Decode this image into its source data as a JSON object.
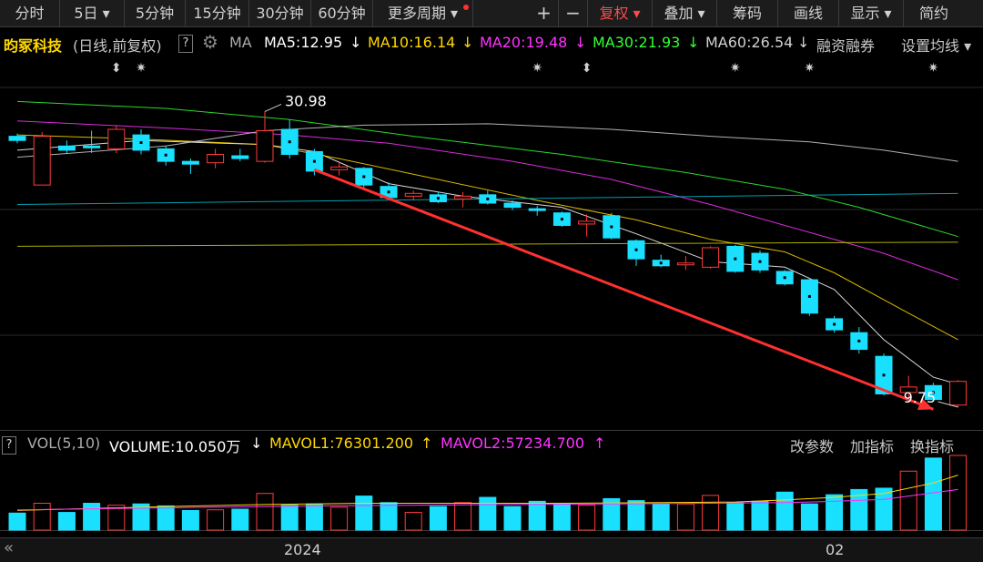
{
  "toolbar": {
    "items": [
      "分时",
      "5日 ▾",
      "5分钟",
      "15分钟",
      "30分钟",
      "60分钟",
      "更多周期 ▾",
      "+",
      "−",
      "复权 ▾",
      "叠加 ▾",
      "筹码",
      "画线",
      "显示 ▾",
      "简约"
    ]
  },
  "header": {
    "stock": "昀冢科技",
    "period": "(日线,前复权)",
    "help": "?",
    "ma_label": "MA",
    "ma5": "MA5:12.95",
    "ma10": "MA10:16.14",
    "ma20": "MA20:19.48",
    "ma30": "MA30:21.93",
    "ma60": "MA60:26.54",
    "margin": "融资融券",
    "settings": "设置均线 ▾",
    "arrow": "↓"
  },
  "volume_header": {
    "help": "?",
    "label": "VOL(5,10)",
    "volume": "VOLUME:10.050万",
    "mavol1": "MAVOL1:76301.200",
    "mavol2": "MAVOL2:57234.700",
    "btn_params": "改参数",
    "btn_add": "加指标",
    "btn_switch": "换指标",
    "down_arrow": "↓",
    "up_arrow": "↑"
  },
  "colors": {
    "up": "#ff3b3b",
    "down": "#19e0ff",
    "ma5": "#ffffff",
    "ma10": "#ffd700",
    "ma20": "#ff33ff",
    "ma30": "#33ff33",
    "ma60": "#d0d0d0",
    "trend": "#ff3030"
  },
  "chart_data": {
    "type": "candlestick",
    "price_range": [
      8.9,
      33.1
    ],
    "annotations": {
      "high": "30.98",
      "low": "9.75"
    },
    "x_axis_labels": [
      "2024",
      "02"
    ],
    "candles": [
      {
        "o": 29.2,
        "c": 28.9,
        "h": 29.4,
        "l": 28.7
      },
      {
        "o": 25.7,
        "c": 29.2,
        "h": 29.5,
        "l": 25.7
      },
      {
        "o": 28.5,
        "c": 28.2,
        "h": 28.9,
        "l": 28.0
      },
      {
        "o": 28.5,
        "c": 28.4,
        "h": 29.6,
        "l": 28.0
      },
      {
        "o": 28.3,
        "c": 29.7,
        "h": 30.0,
        "l": 28.0
      },
      {
        "o": 29.3,
        "c": 28.2,
        "h": 29.7,
        "l": 27.9
      },
      {
        "o": 28.3,
        "c": 27.4,
        "h": 28.5,
        "l": 27.1
      },
      {
        "o": 27.4,
        "c": 27.2,
        "h": 27.6,
        "l": 26.5
      },
      {
        "o": 27.3,
        "c": 27.9,
        "h": 28.3,
        "l": 26.9
      },
      {
        "o": 27.8,
        "c": 27.6,
        "h": 28.3,
        "l": 27.4
      },
      {
        "o": 27.4,
        "c": 29.6,
        "h": 30.98,
        "l": 27.3
      },
      {
        "o": 29.7,
        "c": 27.9,
        "h": 30.4,
        "l": 27.6
      },
      {
        "o": 28.1,
        "c": 26.7,
        "h": 28.3,
        "l": 26.4
      },
      {
        "o": 26.8,
        "c": 27.0,
        "h": 27.4,
        "l": 26.4
      },
      {
        "o": 26.9,
        "c": 25.7,
        "h": 27.0,
        "l": 25.5
      },
      {
        "o": 25.6,
        "c": 24.8,
        "h": 25.9,
        "l": 24.7
      },
      {
        "o": 24.9,
        "c": 25.1,
        "h": 25.3,
        "l": 24.6
      },
      {
        "o": 25.0,
        "c": 24.5,
        "h": 25.2,
        "l": 24.4
      },
      {
        "o": 24.7,
        "c": 24.9,
        "h": 25.2,
        "l": 24.1
      },
      {
        "o": 25.0,
        "c": 24.4,
        "h": 25.3,
        "l": 24.3
      },
      {
        "o": 24.4,
        "c": 24.1,
        "h": 24.6,
        "l": 23.9
      },
      {
        "o": 24.0,
        "c": 23.9,
        "h": 24.2,
        "l": 23.5
      },
      {
        "o": 23.7,
        "c": 22.8,
        "h": 23.8,
        "l": 22.7
      },
      {
        "o": 22.9,
        "c": 23.1,
        "h": 23.6,
        "l": 22.0
      },
      {
        "o": 23.5,
        "c": 21.9,
        "h": 23.7,
        "l": 21.8
      },
      {
        "o": 21.7,
        "c": 20.4,
        "h": 21.8,
        "l": 19.9
      },
      {
        "o": 20.3,
        "c": 19.9,
        "h": 20.7,
        "l": 19.8
      },
      {
        "o": 20.1,
        "c": 20.1,
        "h": 20.6,
        "l": 19.6
      },
      {
        "o": 19.8,
        "c": 21.2,
        "h": 21.3,
        "l": 19.7
      },
      {
        "o": 21.3,
        "c": 19.5,
        "h": 21.4,
        "l": 19.4
      },
      {
        "o": 20.8,
        "c": 19.6,
        "h": 21.0,
        "l": 19.4
      },
      {
        "o": 19.5,
        "c": 18.6,
        "h": 19.6,
        "l": 18.5
      },
      {
        "o": 18.9,
        "c": 16.5,
        "h": 19.0,
        "l": 16.3
      },
      {
        "o": 16.1,
        "c": 15.3,
        "h": 16.3,
        "l": 15.1
      },
      {
        "o": 15.1,
        "c": 13.9,
        "h": 15.5,
        "l": 13.6
      },
      {
        "o": 13.4,
        "c": 10.7,
        "h": 13.6,
        "l": 10.6
      },
      {
        "o": 10.8,
        "c": 11.2,
        "h": 12.0,
        "l": 10.4
      },
      {
        "o": 11.3,
        "c": 10.3,
        "h": 11.5,
        "l": 10.2
      },
      {
        "o": 9.9,
        "c": 11.6,
        "h": 11.7,
        "l": 9.75
      }
    ],
    "volumes": [
      26,
      41,
      27,
      41,
      38,
      40,
      37,
      30,
      31,
      32,
      56,
      38,
      40,
      35,
      52,
      42,
      27,
      36,
      42,
      50,
      36,
      44,
      41,
      38,
      48,
      45,
      40,
      40,
      53,
      42,
      44,
      58,
      40,
      54,
      62,
      64,
      90,
      110,
      114
    ],
    "ma_lines": {
      "ma5": [
        [
          0,
          28.2
        ],
        [
          5,
          28.9
        ],
        [
          10,
          28.6
        ],
        [
          12,
          28.1
        ],
        [
          15,
          25.8
        ],
        [
          18,
          24.9
        ],
        [
          22,
          24.1
        ],
        [
          25,
          22.2
        ],
        [
          28,
          20.2
        ],
        [
          31,
          19.8
        ],
        [
          33,
          18.2
        ],
        [
          35,
          14.6
        ],
        [
          37,
          11.9
        ],
        [
          38,
          11.4
        ]
      ],
      "ma10": [
        [
          0,
          29.3
        ],
        [
          5,
          29.0
        ],
        [
          10,
          28.6
        ],
        [
          13,
          27.6
        ],
        [
          17,
          26.1
        ],
        [
          21,
          24.6
        ],
        [
          25,
          23.2
        ],
        [
          28,
          21.8
        ],
        [
          31,
          20.9
        ],
        [
          33,
          19.4
        ],
        [
          36,
          16.5
        ],
        [
          38,
          14.6
        ]
      ],
      "ma20": [
        [
          0,
          30.3
        ],
        [
          6,
          29.8
        ],
        [
          11,
          29.3
        ],
        [
          15,
          28.7
        ],
        [
          20,
          27.4
        ],
        [
          24,
          26.1
        ],
        [
          28,
          24.3
        ],
        [
          32,
          22.3
        ],
        [
          35,
          20.8
        ],
        [
          38,
          18.9
        ]
      ],
      "ma30": [
        [
          0,
          31.7
        ],
        [
          6,
          31.2
        ],
        [
          11,
          30.4
        ],
        [
          16,
          29.2
        ],
        [
          22,
          27.9
        ],
        [
          27,
          26.6
        ],
        [
          31,
          25.4
        ],
        [
          34,
          24.1
        ],
        [
          38,
          22.0
        ]
      ],
      "ma60": [
        [
          0,
          27.7
        ],
        [
          6,
          28.5
        ],
        [
          10,
          29.6
        ],
        [
          14,
          30.0
        ],
        [
          19,
          30.1
        ],
        [
          24,
          29.7
        ],
        [
          28,
          29.2
        ],
        [
          32,
          28.8
        ],
        [
          35,
          28.2
        ],
        [
          38,
          27.4
        ]
      ]
    },
    "horizontal_lines": [
      {
        "start": [
          0,
          24.3
        ],
        "end": [
          38,
          25.1
        ]
      },
      {
        "start": [
          0,
          21.3
        ],
        "end": [
          38,
          21.6
        ]
      }
    ],
    "trend_line": {
      "start": [
        12,
        26.8
      ],
      "end": [
        37,
        9.6
      ]
    },
    "mavol_lines": {
      "mavol1": [
        [
          0,
          30
        ],
        [
          3,
          33
        ],
        [
          6,
          36
        ],
        [
          10,
          39
        ],
        [
          14,
          41
        ],
        [
          18,
          41
        ],
        [
          22,
          41
        ],
        [
          26,
          42
        ],
        [
          29,
          43
        ],
        [
          31,
          46
        ],
        [
          33,
          50
        ],
        [
          35,
          56
        ],
        [
          37,
          72
        ],
        [
          38,
          84
        ]
      ],
      "mavol2": [
        [
          0,
          31
        ],
        [
          4,
          33
        ],
        [
          8,
          35
        ],
        [
          12,
          37
        ],
        [
          16,
          38
        ],
        [
          20,
          39
        ],
        [
          24,
          40
        ],
        [
          28,
          41
        ],
        [
          31,
          42
        ],
        [
          33,
          44
        ],
        [
          35,
          47
        ],
        [
          37,
          57
        ],
        [
          38,
          62
        ]
      ]
    },
    "markers": {
      "double_arrow": [
        4,
        23
      ],
      "asterisk": [
        5,
        21,
        29,
        32,
        37
      ]
    }
  }
}
